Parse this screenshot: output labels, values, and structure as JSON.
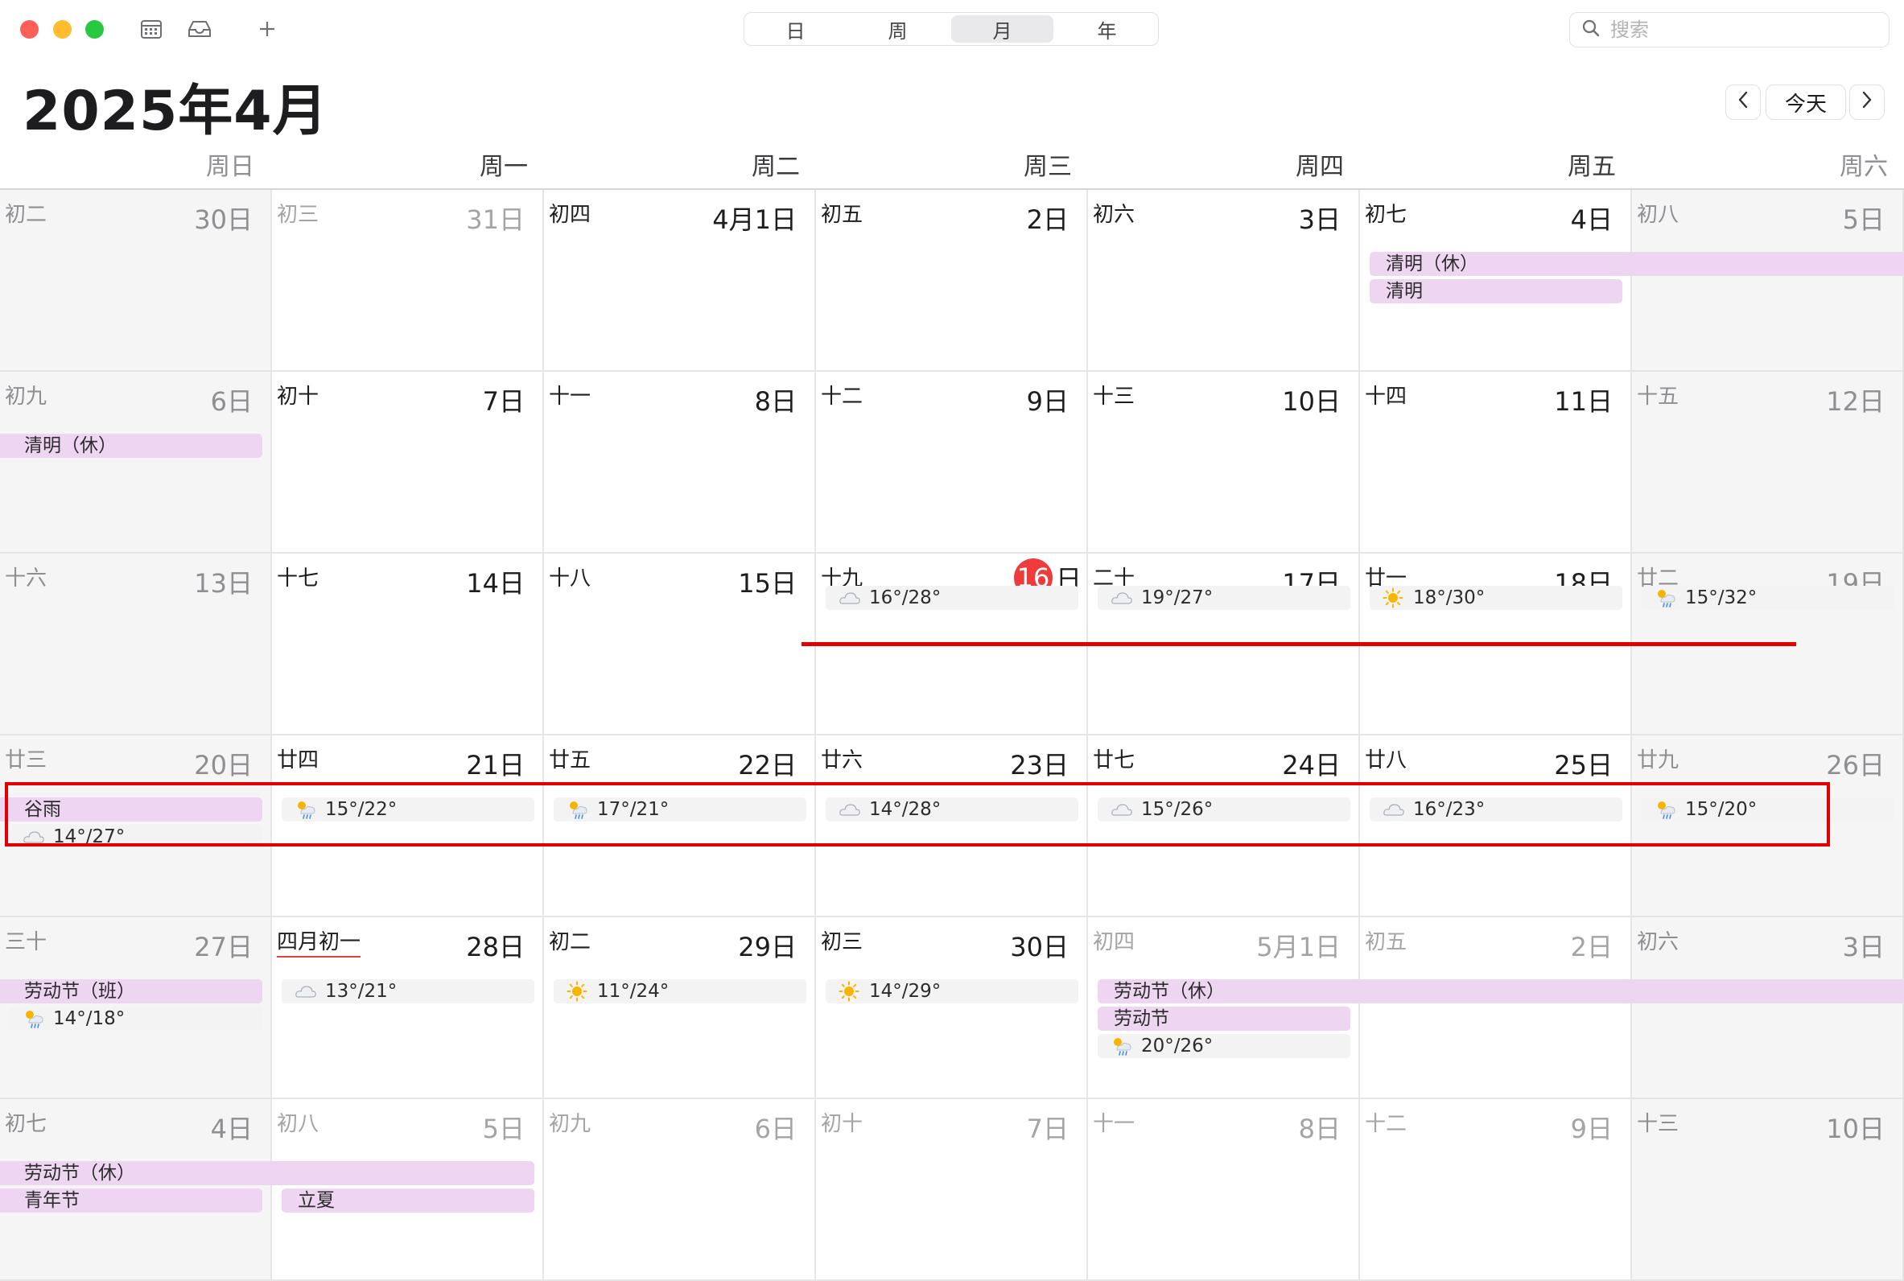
{
  "toolbar": {
    "views": [
      {
        "label": "日",
        "active": false
      },
      {
        "label": "周",
        "active": false
      },
      {
        "label": "月",
        "active": true
      },
      {
        "label": "年",
        "active": false
      }
    ],
    "search_placeholder": "搜索"
  },
  "title": "2025年4月",
  "nav": {
    "prev_icon": "chevron-left-icon",
    "today_label": "今天",
    "next_icon": "chevron-right-icon"
  },
  "weekdays": [
    "周日",
    "周一",
    "周二",
    "周三",
    "周四",
    "周五",
    "周六"
  ],
  "weeks": [
    [
      {
        "lunar": "初二",
        "day": "30日",
        "dim": true
      },
      {
        "lunar": "初三",
        "day": "31日",
        "dim": true
      },
      {
        "lunar": "初四",
        "day": "4月1日"
      },
      {
        "lunar": "初五",
        "day": "2日"
      },
      {
        "lunar": "初六",
        "day": "3日"
      },
      {
        "lunar": "初七",
        "day": "4日"
      },
      {
        "lunar": "初八",
        "day": "5日"
      }
    ],
    [
      {
        "lunar": "初九",
        "day": "6日"
      },
      {
        "lunar": "初十",
        "day": "7日"
      },
      {
        "lunar": "十一",
        "day": "8日"
      },
      {
        "lunar": "十二",
        "day": "9日"
      },
      {
        "lunar": "十三",
        "day": "10日"
      },
      {
        "lunar": "十四",
        "day": "11日"
      },
      {
        "lunar": "十五",
        "day": "12日"
      }
    ],
    [
      {
        "lunar": "十六",
        "day": "13日"
      },
      {
        "lunar": "十七",
        "day": "14日"
      },
      {
        "lunar": "十八",
        "day": "15日"
      },
      {
        "lunar": "十九",
        "day": "16",
        "today": true,
        "day_suffix": "日"
      },
      {
        "lunar": "二十",
        "day": "17日"
      },
      {
        "lunar": "廿一",
        "day": "18日"
      },
      {
        "lunar": "廿二",
        "day": "19日"
      }
    ],
    [
      {
        "lunar": "廿三",
        "day": "20日"
      },
      {
        "lunar": "廿四",
        "day": "21日"
      },
      {
        "lunar": "廿五",
        "day": "22日"
      },
      {
        "lunar": "廿六",
        "day": "23日"
      },
      {
        "lunar": "廿七",
        "day": "24日"
      },
      {
        "lunar": "廿八",
        "day": "25日"
      },
      {
        "lunar": "廿九",
        "day": "26日"
      }
    ],
    [
      {
        "lunar": "三十",
        "day": "27日"
      },
      {
        "lunar": "四月初一",
        "day": "28日",
        "new_month": true
      },
      {
        "lunar": "初二",
        "day": "29日"
      },
      {
        "lunar": "初三",
        "day": "30日"
      },
      {
        "lunar": "初四",
        "day": "5月1日",
        "dim": true
      },
      {
        "lunar": "初五",
        "day": "2日",
        "dim": true
      },
      {
        "lunar": "初六",
        "day": "3日",
        "dim": true
      }
    ],
    [
      {
        "lunar": "初七",
        "day": "4日",
        "dim": true
      },
      {
        "lunar": "初八",
        "day": "5日",
        "dim": true
      },
      {
        "lunar": "初九",
        "day": "6日",
        "dim": true
      },
      {
        "lunar": "初十",
        "day": "7日",
        "dim": true
      },
      {
        "lunar": "十一",
        "day": "8日",
        "dim": true
      },
      {
        "lunar": "十二",
        "day": "9日",
        "dim": true
      },
      {
        "lunar": "十三",
        "day": "10日",
        "dim": true
      }
    ]
  ],
  "events": [
    {
      "label": "清明（休）",
      "week": 0,
      "start": 5,
      "span": 2,
      "row": 0
    },
    {
      "label": "清明",
      "week": 0,
      "start": 5,
      "span": 1,
      "row": 1
    },
    {
      "label": "清明（休）",
      "week": 1,
      "start": 0,
      "span": 1,
      "row": 0
    },
    {
      "label": "谷雨",
      "week": 3,
      "start": 0,
      "span": 1,
      "row": 0
    },
    {
      "label": "劳动节（班）",
      "week": 4,
      "start": 0,
      "span": 1,
      "row": 0
    },
    {
      "label": "劳动节（休）",
      "week": 4,
      "start": 4,
      "span": 3,
      "row": 0
    },
    {
      "label": "劳动节",
      "week": 4,
      "start": 4,
      "span": 1,
      "row": 1
    },
    {
      "label": "劳动节（休）",
      "week": 5,
      "start": 0,
      "span": 2,
      "row": 0
    },
    {
      "label": "青年节",
      "week": 5,
      "start": 0,
      "span": 1,
      "row": 1
    },
    {
      "label": "立夏",
      "week": 5,
      "start": 1,
      "span": 1,
      "row": 1
    }
  ],
  "weather": [
    {
      "temp": "16°/28°",
      "icon": "cloud",
      "week": 2,
      "day": 3,
      "row": 0
    },
    {
      "temp": "19°/27°",
      "icon": "cloud",
      "week": 2,
      "day": 4,
      "row": 0
    },
    {
      "temp": "18°/30°",
      "icon": "sun",
      "week": 2,
      "day": 5,
      "row": 0
    },
    {
      "temp": "15°/32°",
      "icon": "sun-rain",
      "week": 2,
      "day": 6,
      "row": 0
    },
    {
      "temp": "14°/27°",
      "icon": "cloud",
      "week": 3,
      "day": 0,
      "row": 1
    },
    {
      "temp": "15°/22°",
      "icon": "sun-rain",
      "week": 3,
      "day": 1,
      "row": 0
    },
    {
      "temp": "17°/21°",
      "icon": "sun-rain",
      "week": 3,
      "day": 2,
      "row": 0
    },
    {
      "temp": "14°/28°",
      "icon": "cloud",
      "week": 3,
      "day": 3,
      "row": 0
    },
    {
      "temp": "15°/26°",
      "icon": "cloud",
      "week": 3,
      "day": 4,
      "row": 0
    },
    {
      "temp": "16°/23°",
      "icon": "cloud",
      "week": 3,
      "day": 5,
      "row": 0
    },
    {
      "temp": "15°/20°",
      "icon": "sun-rain",
      "week": 3,
      "day": 6,
      "row": 0
    },
    {
      "temp": "14°/18°",
      "icon": "sun-rain",
      "week": 4,
      "day": 0,
      "row": 1
    },
    {
      "temp": "13°/21°",
      "icon": "cloud",
      "week": 4,
      "day": 1,
      "row": 0
    },
    {
      "temp": "11°/24°",
      "icon": "sun",
      "week": 4,
      "day": 2,
      "row": 0
    },
    {
      "temp": "14°/29°",
      "icon": "sun",
      "week": 4,
      "day": 3,
      "row": 0
    },
    {
      "temp": "20°/26°",
      "icon": "sun-rain",
      "week": 4,
      "day": 4,
      "row": 2
    }
  ],
  "colors": {
    "event_bg": "#eed5f2",
    "weather_bg": "#f3f3f3",
    "today": "#ee3b3b",
    "annotation": "#e50000"
  }
}
